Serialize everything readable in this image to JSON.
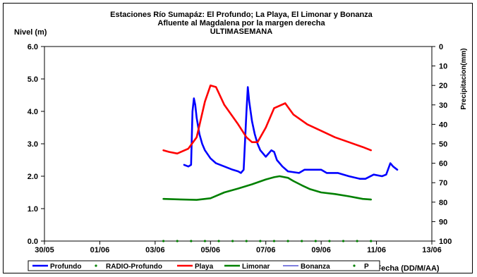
{
  "chart_data": {
    "type": "line",
    "title": [
      "Estaciones Río Sumapáz: El Profundo; La Playa, El Limonar y Bonanza",
      "Afluente al Magdalena por la margen derecha",
      "ULTIMASEMANA"
    ],
    "ylabel": "Nivel (m)",
    "y2label": "Precipitacion(mm)",
    "xlabel": "Fecha (DD/M/AA)",
    "xlim": [
      0,
      14
    ],
    "ylim": [
      0,
      6
    ],
    "y2lim": [
      0,
      100
    ],
    "y2_inverted": true,
    "x_ticks": [
      0,
      2,
      4,
      6,
      8,
      10,
      12,
      14
    ],
    "x_tick_labels": [
      "30/05",
      "01/06",
      "03/06",
      "05/06",
      "07/06",
      "09/06",
      "11/06",
      "13/06"
    ],
    "y_ticks": [
      0,
      1,
      2,
      3,
      4,
      5,
      6
    ],
    "y_tick_labels": [
      "0.0",
      "1.0",
      "2.0",
      "3.0",
      "4.0",
      "5.0",
      "6.0"
    ],
    "y2_ticks": [
      0,
      10,
      20,
      30,
      40,
      50,
      60,
      70,
      80,
      90,
      100
    ],
    "y2_tick_labels": [
      "0",
      "10",
      "20",
      "30",
      "40",
      "50",
      "60",
      "70",
      "80",
      "90",
      "100"
    ],
    "grid": false,
    "legend_position": "bottom",
    "series": [
      {
        "name": "Profundo",
        "color": "#0000ff",
        "width": 2.6,
        "style": "line",
        "x": [
          5.05,
          5.2,
          5.3,
          5.35,
          5.4,
          5.45,
          5.5,
          5.6,
          5.7,
          5.8,
          6.0,
          6.2,
          6.5,
          6.8,
          7.0,
          7.1,
          7.2,
          7.3,
          7.35,
          7.4,
          7.5,
          7.6,
          7.7,
          7.8,
          8.0,
          8.2,
          8.3,
          8.4,
          8.6,
          8.8,
          9.2,
          9.4,
          9.6,
          10.0,
          10.2,
          10.4,
          10.6,
          11.0,
          11.4,
          11.6,
          11.9,
          12.2,
          12.35,
          12.5,
          12.6,
          12.75
        ],
        "y": [
          2.35,
          2.3,
          2.35,
          4.0,
          4.4,
          4.2,
          3.8,
          3.3,
          3.0,
          2.8,
          2.55,
          2.4,
          2.3,
          2.2,
          2.15,
          2.1,
          2.2,
          4.0,
          4.75,
          4.3,
          3.7,
          3.3,
          3.0,
          2.8,
          2.6,
          2.8,
          2.75,
          2.5,
          2.3,
          2.15,
          2.1,
          2.2,
          2.2,
          2.2,
          2.1,
          2.1,
          2.1,
          2.0,
          1.92,
          1.92,
          2.05,
          2.0,
          2.05,
          2.4,
          2.3,
          2.2
        ]
      },
      {
        "name": "RADIO-Profundo",
        "color": "#008000",
        "style": "marker",
        "x": [
          4.3,
          4.8,
          5.3,
          5.8,
          6.3,
          6.8,
          7.3,
          7.8,
          8.3,
          8.8,
          9.3,
          9.8,
          10.3,
          10.8,
          11.3,
          11.8
        ],
        "y": [
          0,
          0,
          0,
          0,
          0,
          0,
          0,
          0,
          0,
          0,
          0,
          0,
          0,
          0,
          0,
          0
        ]
      },
      {
        "name": "Playa",
        "color": "#ff0000",
        "width": 2.6,
        "style": "line",
        "x": [
          4.3,
          4.5,
          4.8,
          5.2,
          5.5,
          5.8,
          6.0,
          6.2,
          6.5,
          7.0,
          7.3,
          7.5,
          7.7,
          8.0,
          8.3,
          8.7,
          9.0,
          9.5,
          10.0,
          10.5,
          11.0,
          11.5,
          11.8
        ],
        "y": [
          2.8,
          2.75,
          2.7,
          2.85,
          3.2,
          4.3,
          4.8,
          4.75,
          4.2,
          3.6,
          3.2,
          3.05,
          3.05,
          3.5,
          4.1,
          4.25,
          3.9,
          3.6,
          3.4,
          3.2,
          3.05,
          2.9,
          2.8
        ]
      },
      {
        "name": "Limonar",
        "color": "#008000",
        "width": 2.6,
        "style": "line",
        "x": [
          4.3,
          5.0,
          5.5,
          6.0,
          6.5,
          7.0,
          7.5,
          8.0,
          8.3,
          8.5,
          8.8,
          9.0,
          9.3,
          9.6,
          10.0,
          10.5,
          11.0,
          11.5,
          11.8
        ],
        "y": [
          1.3,
          1.28,
          1.27,
          1.32,
          1.5,
          1.62,
          1.75,
          1.9,
          1.97,
          2.0,
          1.95,
          1.85,
          1.72,
          1.6,
          1.5,
          1.45,
          1.38,
          1.3,
          1.28
        ]
      },
      {
        "name": "Bonanza",
        "color": "#3333cc",
        "width": 1.2,
        "style": "line",
        "x": [],
        "y": []
      },
      {
        "name": "P",
        "color": "#008000",
        "style": "marker",
        "x": [],
        "y": []
      }
    ]
  }
}
